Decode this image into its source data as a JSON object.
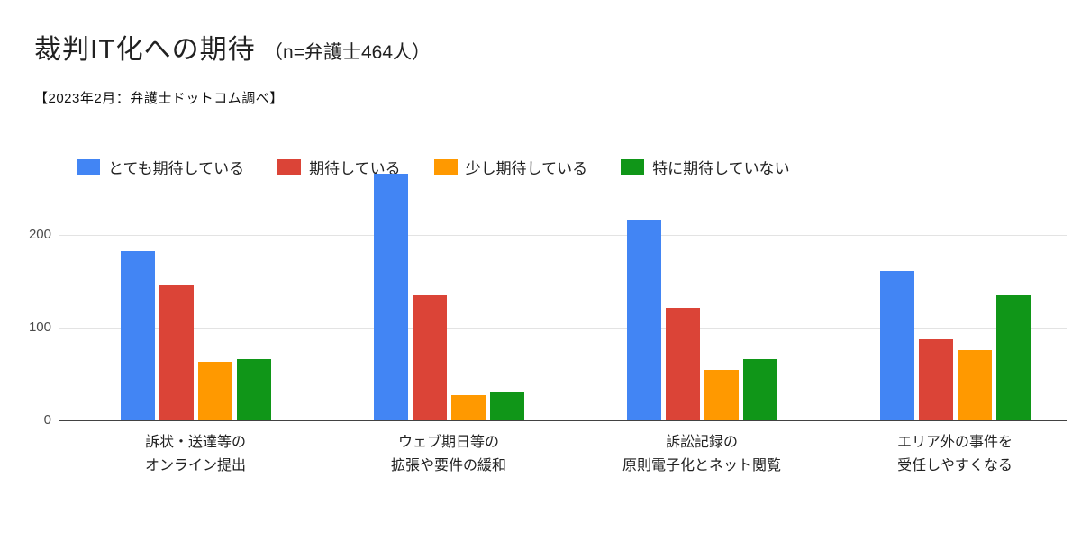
{
  "header": {
    "title": "裁判IT化への期待",
    "title_suffix": "（n=弁護士464人）",
    "subtitle": "【2023年2月：弁護士ドットコム調べ】"
  },
  "chart_data": {
    "type": "bar",
    "title": "裁判IT化への期待（n=弁護士464人）",
    "subtitle": "【2023年2月：弁護士ドットコム調べ】",
    "categories": [
      [
        "訴状・送達等の",
        "オンライン提出"
      ],
      [
        "ウェブ期日等の",
        "拡張や要件の緩和"
      ],
      [
        "訴訟記録の",
        "原則電子化とネット閲覧"
      ],
      [
        "エリア外の事件を",
        "受任しやすくなる"
      ]
    ],
    "series": [
      {
        "name": "とても期待している",
        "color": "#4285F4",
        "values": [
          183,
          266,
          216,
          161
        ]
      },
      {
        "name": "期待している",
        "color": "#DB4437",
        "values": [
          146,
          135,
          121,
          87
        ]
      },
      {
        "name": "少し期待している",
        "color": "#FF9900",
        "values": [
          63,
          27,
          54,
          76
        ]
      },
      {
        "name": "特に期待していない",
        "color": "#109618",
        "values": [
          66,
          30,
          66,
          135
        ]
      }
    ],
    "yticks": [
      0,
      100,
      200
    ],
    "ylim": [
      0,
      270
    ],
    "xlabel": "",
    "ylabel": "",
    "grid": true,
    "legend_position": "top"
  }
}
